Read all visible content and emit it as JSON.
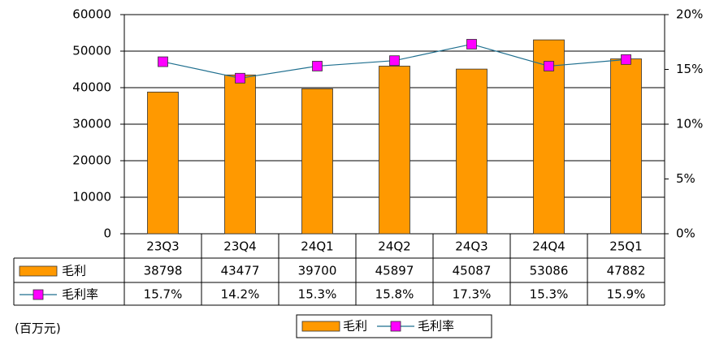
{
  "chart_data": {
    "type": "bar-line",
    "categories": [
      "23Q3",
      "23Q4",
      "24Q1",
      "24Q2",
      "24Q3",
      "24Q4",
      "25Q1"
    ],
    "series": [
      {
        "name": "毛利",
        "type": "bar",
        "color": "#ff9900",
        "values": [
          38798,
          43477,
          39700,
          45897,
          45087,
          53086,
          47882
        ]
      },
      {
        "name": "毛利率",
        "type": "line",
        "axis": "y2",
        "color": "#1f6f8f",
        "marker_color": "#ff00ff",
        "values": [
          15.7,
          14.2,
          15.3,
          15.8,
          17.3,
          15.3,
          15.9
        ],
        "value_labels": [
          "15.7%",
          "14.2%",
          "15.3%",
          "15.8%",
          "17.3%",
          "15.3%",
          "15.9%"
        ]
      }
    ],
    "ylim": [
      0,
      60000
    ],
    "yticks": [
      0,
      10000,
      20000,
      30000,
      40000,
      50000,
      60000
    ],
    "y2lim": [
      0,
      20
    ],
    "y2ticks": [
      {
        "value": 0,
        "label": "0%"
      },
      {
        "value": 5,
        "label": "5%"
      },
      {
        "value": 10,
        "label": "10%"
      },
      {
        "value": 15,
        "label": "15%"
      },
      {
        "value": 20,
        "label": "20%"
      }
    ],
    "grid": true,
    "unit_label": "(百万元)"
  }
}
